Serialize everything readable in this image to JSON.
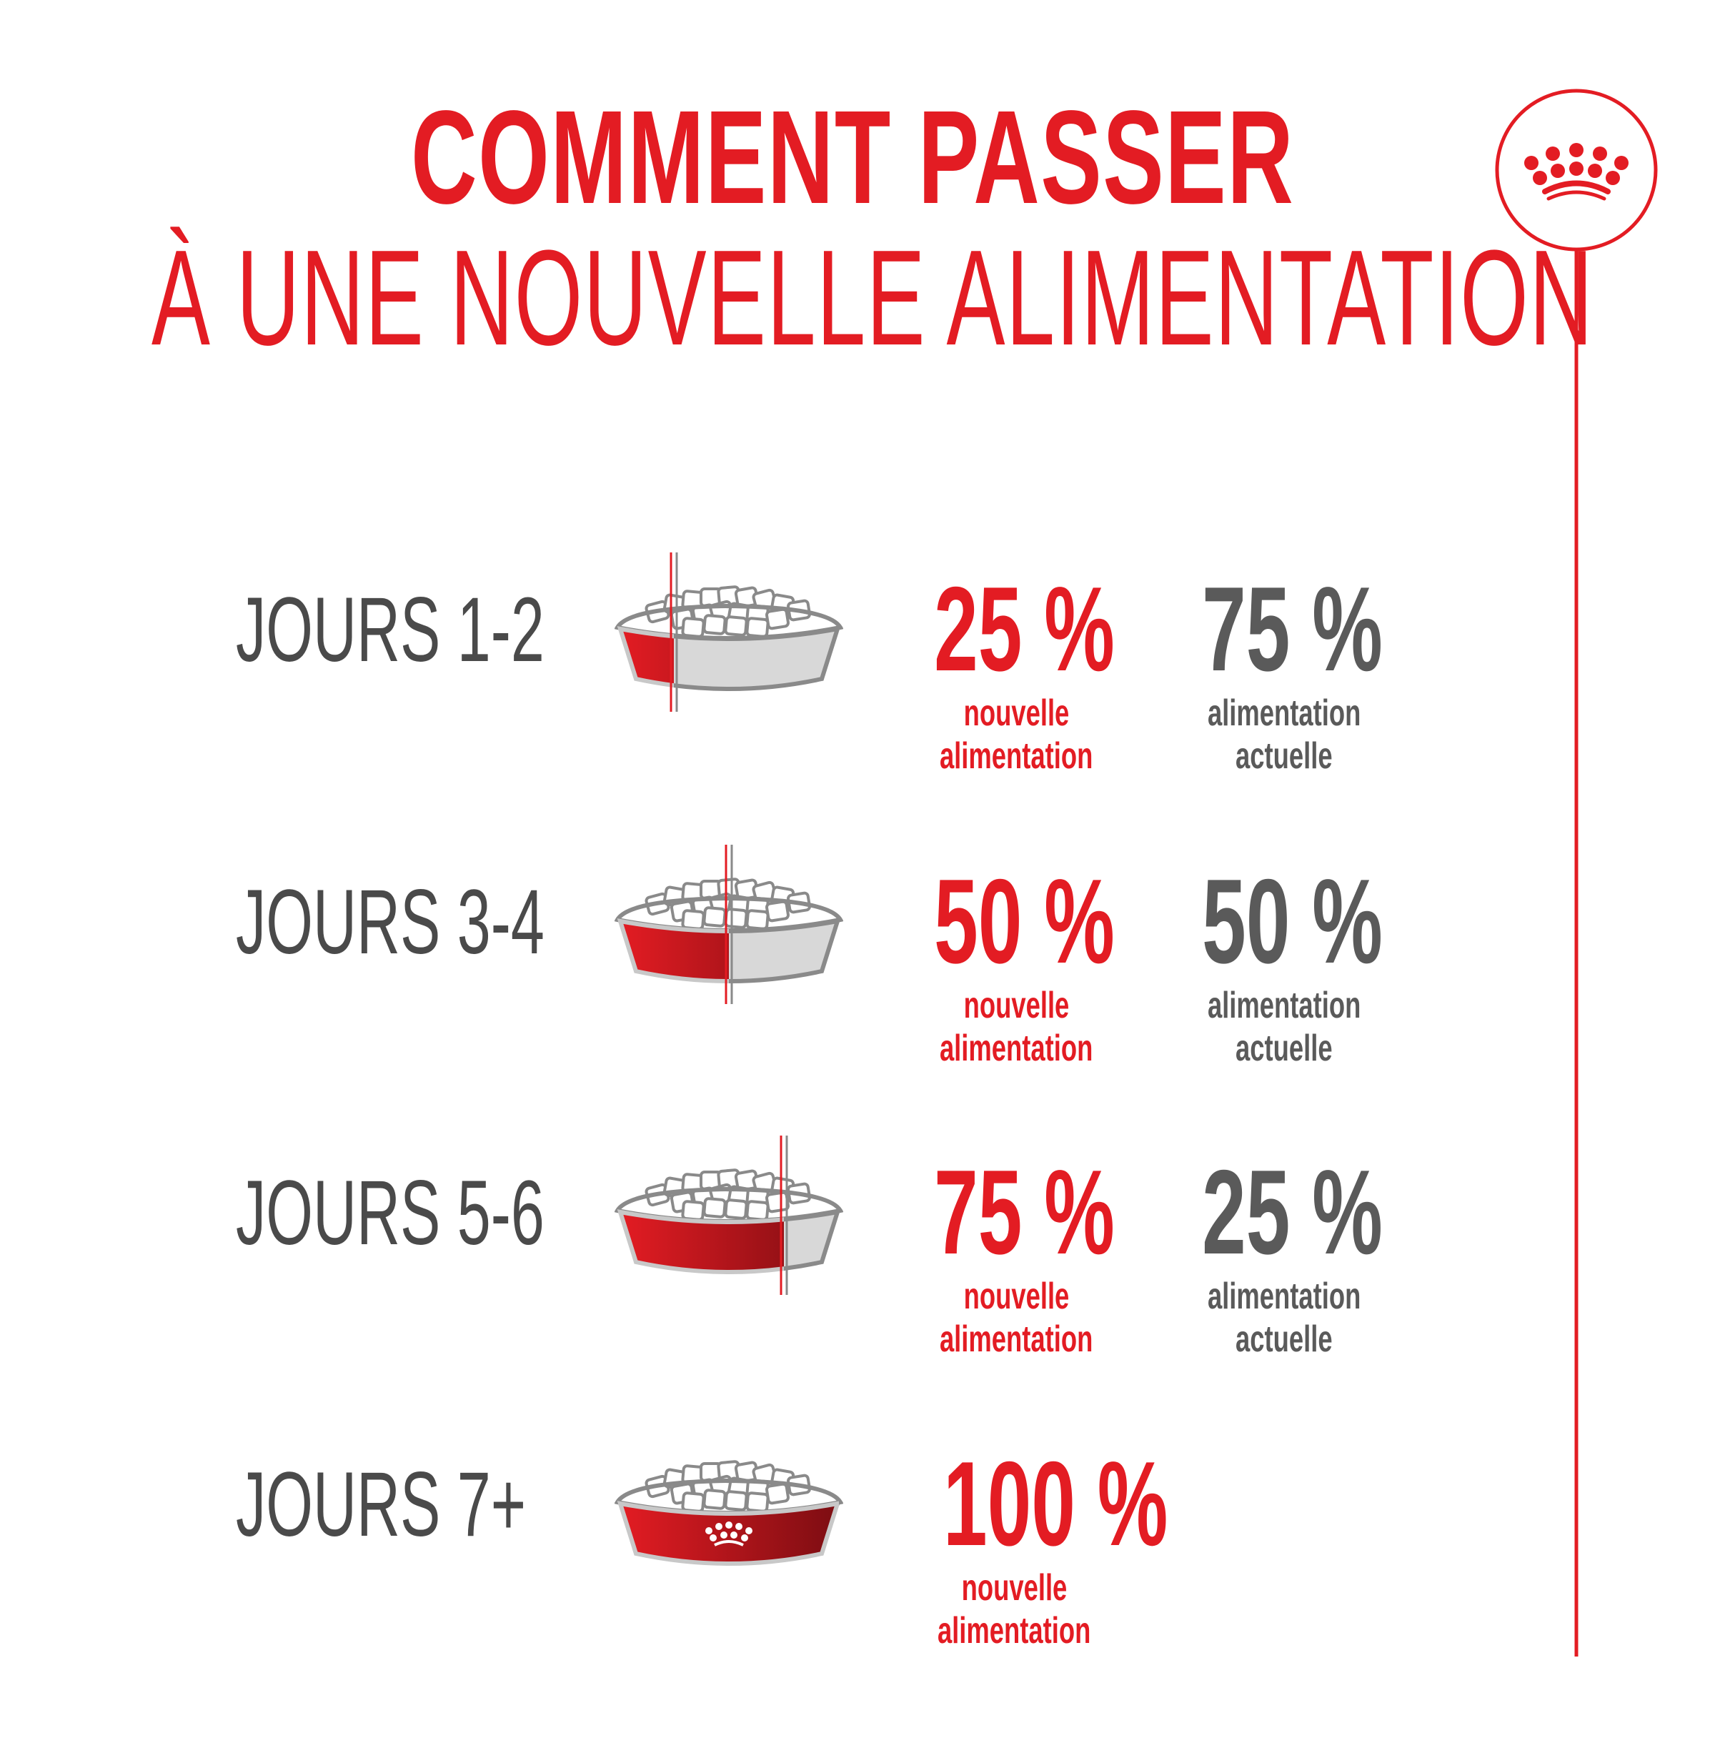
{
  "title": {
    "line1": "COMMENT PASSER",
    "line2": "À UNE NOUVELLE ALIMENTATION"
  },
  "colors": {
    "brand_red": "#e31c23",
    "text_gray": "#4a4a4a",
    "bowl_gray": "#d8d8d8"
  },
  "logo": {
    "icon": "crown-icon"
  },
  "rows": [
    {
      "day": "JOURS 1-2",
      "new_pct": "25 %",
      "new_label1": "nouvelle",
      "new_label2": "alimentation",
      "cur_pct": "75 %",
      "cur_label1": "alimentation",
      "cur_label2": "actuelle",
      "new_fraction": 0.25
    },
    {
      "day": "JOURS 3-4",
      "new_pct": "50 %",
      "new_label1": "nouvelle",
      "new_label2": "alimentation",
      "cur_pct": "50 %",
      "cur_label1": "alimentation",
      "cur_label2": "actuelle",
      "new_fraction": 0.5
    },
    {
      "day": "JOURS 5-6",
      "new_pct": "75 %",
      "new_label1": "nouvelle",
      "new_label2": "alimentation",
      "cur_pct": "25 %",
      "cur_label1": "alimentation",
      "cur_label2": "actuelle",
      "new_fraction": 0.75
    },
    {
      "day": "JOURS 7+",
      "new_pct": "100 %",
      "new_label1": "nouvelle",
      "new_label2": "alimentation",
      "new_fraction": 1
    }
  ]
}
